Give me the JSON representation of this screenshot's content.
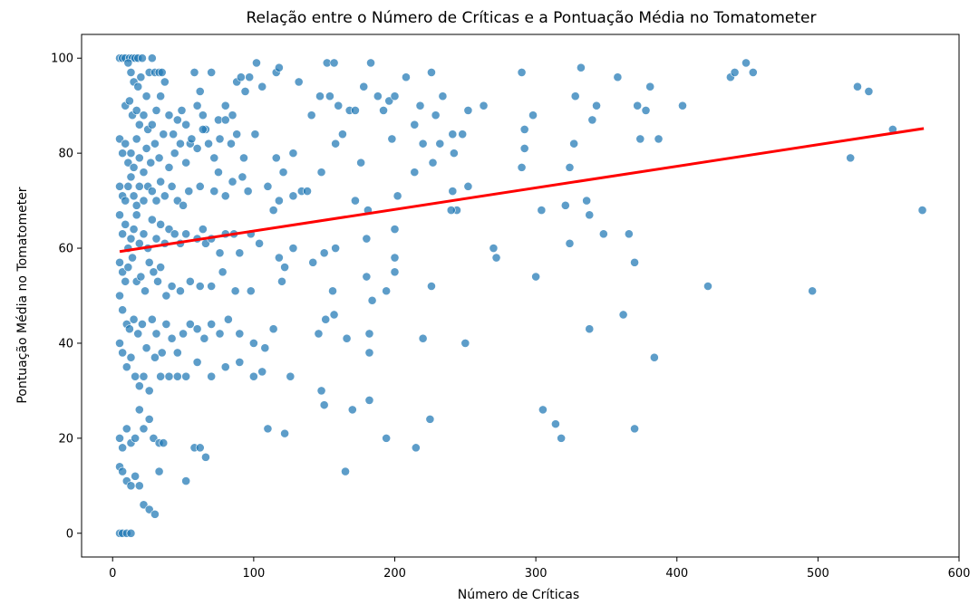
{
  "chart_data": {
    "type": "scatter",
    "title": "Relação entre o Número de Críticas e a Pontuação Média no Tomatometer",
    "xlabel": "Número de Críticas",
    "ylabel": "Pontuação Média no Tomatometer",
    "xlim": [
      -22,
      600
    ],
    "ylim": [
      -5,
      105
    ],
    "xticks": [
      0,
      100,
      200,
      300,
      400,
      500,
      600
    ],
    "yticks": [
      0,
      20,
      40,
      60,
      80,
      100
    ],
    "grid": false,
    "colors": {
      "points": "#1f77b4",
      "trend": "#ff0000"
    },
    "trend_line": {
      "x": [
        5,
        575
      ],
      "y": [
        59.3,
        85.2
      ]
    },
    "points": [
      [
        5,
        100
      ],
      [
        7,
        100
      ],
      [
        9,
        100
      ],
      [
        12,
        100
      ],
      [
        14,
        100
      ],
      [
        16,
        100
      ],
      [
        18,
        100
      ],
      [
        21,
        100
      ],
      [
        28,
        100
      ],
      [
        11,
        99
      ],
      [
        13,
        97
      ],
      [
        15,
        95
      ],
      [
        18,
        94
      ],
      [
        20,
        96
      ],
      [
        24,
        92
      ],
      [
        26,
        97
      ],
      [
        30,
        97
      ],
      [
        33,
        97
      ],
      [
        35,
        97
      ],
      [
        9,
        90
      ],
      [
        12,
        91
      ],
      [
        14,
        88
      ],
      [
        17,
        89
      ],
      [
        19,
        86
      ],
      [
        22,
        88
      ],
      [
        25,
        85
      ],
      [
        28,
        86
      ],
      [
        31,
        89
      ],
      [
        34,
        92
      ],
      [
        37,
        95
      ],
      [
        40,
        88
      ],
      [
        43,
        84
      ],
      [
        46,
        87
      ],
      [
        49,
        89
      ],
      [
        52,
        86
      ],
      [
        55,
        82
      ],
      [
        58,
        97
      ],
      [
        60,
        90
      ],
      [
        62,
        93
      ],
      [
        64,
        88
      ],
      [
        66,
        85
      ],
      [
        70,
        97
      ],
      [
        75,
        87
      ],
      [
        80,
        90
      ],
      [
        85,
        88
      ],
      [
        88,
        95
      ],
      [
        91,
        96
      ],
      [
        94,
        93
      ],
      [
        97,
        96
      ],
      [
        102,
        99
      ],
      [
        106,
        94
      ],
      [
        116,
        97
      ],
      [
        118,
        98
      ],
      [
        132,
        95
      ],
      [
        141,
        88
      ],
      [
        147,
        92
      ],
      [
        152,
        99
      ],
      [
        154,
        92
      ],
      [
        157,
        99
      ],
      [
        160,
        90
      ],
      [
        163,
        84
      ],
      [
        168,
        89
      ],
      [
        172,
        89
      ],
      [
        178,
        94
      ],
      [
        183,
        99
      ],
      [
        188,
        92
      ],
      [
        192,
        89
      ],
      [
        196,
        91
      ],
      [
        200,
        92
      ],
      [
        208,
        96
      ],
      [
        214,
        86
      ],
      [
        218,
        90
      ],
      [
        226,
        97
      ],
      [
        229,
        88
      ],
      [
        234,
        92
      ],
      [
        241,
        84
      ],
      [
        248,
        84
      ],
      [
        252,
        89
      ],
      [
        263,
        90
      ],
      [
        290,
        97
      ],
      [
        292,
        85
      ],
      [
        298,
        88
      ],
      [
        328,
        92
      ],
      [
        332,
        98
      ],
      [
        340,
        87
      ],
      [
        343,
        90
      ],
      [
        358,
        96
      ],
      [
        372,
        90
      ],
      [
        378,
        89
      ],
      [
        381,
        94
      ],
      [
        404,
        90
      ],
      [
        438,
        96
      ],
      [
        441,
        97
      ],
      [
        449,
        99
      ],
      [
        454,
        97
      ],
      [
        528,
        94
      ],
      [
        536,
        93
      ],
      [
        553,
        85
      ],
      [
        5,
        83
      ],
      [
        7,
        80
      ],
      [
        9,
        82
      ],
      [
        11,
        78
      ],
      [
        13,
        80
      ],
      [
        15,
        77
      ],
      [
        17,
        83
      ],
      [
        19,
        79
      ],
      [
        22,
        76
      ],
      [
        24,
        81
      ],
      [
        27,
        78
      ],
      [
        30,
        82
      ],
      [
        33,
        79
      ],
      [
        36,
        84
      ],
      [
        40,
        77
      ],
      [
        44,
        80
      ],
      [
        48,
        82
      ],
      [
        52,
        78
      ],
      [
        56,
        83
      ],
      [
        60,
        81
      ],
      [
        64,
        85
      ],
      [
        68,
        82
      ],
      [
        72,
        79
      ],
      [
        76,
        83
      ],
      [
        80,
        87
      ],
      [
        84,
        82
      ],
      [
        88,
        84
      ],
      [
        93,
        79
      ],
      [
        101,
        84
      ],
      [
        116,
        79
      ],
      [
        121,
        76
      ],
      [
        128,
        80
      ],
      [
        148,
        76
      ],
      [
        158,
        82
      ],
      [
        176,
        78
      ],
      [
        198,
        83
      ],
      [
        214,
        76
      ],
      [
        220,
        82
      ],
      [
        227,
        78
      ],
      [
        232,
        82
      ],
      [
        242,
        80
      ],
      [
        290,
        77
      ],
      [
        292,
        81
      ],
      [
        327,
        82
      ],
      [
        324,
        77
      ],
      [
        374,
        83
      ],
      [
        387,
        83
      ],
      [
        523,
        79
      ],
      [
        5,
        73
      ],
      [
        7,
        71
      ],
      [
        9,
        70
      ],
      [
        11,
        73
      ],
      [
        13,
        75
      ],
      [
        15,
        71
      ],
      [
        17,
        69
      ],
      [
        19,
        73
      ],
      [
        22,
        70
      ],
      [
        25,
        73
      ],
      [
        28,
        72
      ],
      [
        31,
        70
      ],
      [
        34,
        74
      ],
      [
        37,
        71
      ],
      [
        42,
        73
      ],
      [
        46,
        70
      ],
      [
        50,
        69
      ],
      [
        54,
        72
      ],
      [
        62,
        73
      ],
      [
        72,
        72
      ],
      [
        75,
        76
      ],
      [
        80,
        71
      ],
      [
        85,
        74
      ],
      [
        92,
        75
      ],
      [
        96,
        72
      ],
      [
        110,
        73
      ],
      [
        114,
        68
      ],
      [
        118,
        70
      ],
      [
        128,
        71
      ],
      [
        134,
        72
      ],
      [
        138,
        72
      ],
      [
        172,
        70
      ],
      [
        181,
        68
      ],
      [
        202,
        71
      ],
      [
        241,
        72
      ],
      [
        244,
        68
      ],
      [
        252,
        73
      ],
      [
        304,
        68
      ],
      [
        321,
        69
      ],
      [
        336,
        70
      ],
      [
        348,
        63
      ],
      [
        5,
        67
      ],
      [
        7,
        63
      ],
      [
        9,
        65
      ],
      [
        11,
        60
      ],
      [
        13,
        62
      ],
      [
        15,
        64
      ],
      [
        17,
        67
      ],
      [
        19,
        61
      ],
      [
        22,
        63
      ],
      [
        25,
        60
      ],
      [
        28,
        66
      ],
      [
        31,
        62
      ],
      [
        34,
        65
      ],
      [
        37,
        61
      ],
      [
        40,
        64
      ],
      [
        44,
        63
      ],
      [
        48,
        61
      ],
      [
        52,
        63
      ],
      [
        60,
        62
      ],
      [
        64,
        64
      ],
      [
        66,
        61
      ],
      [
        70,
        62
      ],
      [
        76,
        59
      ],
      [
        80,
        63
      ],
      [
        86,
        63
      ],
      [
        90,
        59
      ],
      [
        98,
        63
      ],
      [
        104,
        61
      ],
      [
        118,
        58
      ],
      [
        122,
        56
      ],
      [
        128,
        60
      ],
      [
        142,
        57
      ],
      [
        150,
        59
      ],
      [
        158,
        60
      ],
      [
        180,
        62
      ],
      [
        200,
        64
      ],
      [
        200,
        58
      ],
      [
        240,
        68
      ],
      [
        270,
        60
      ],
      [
        272,
        58
      ],
      [
        300,
        54
      ],
      [
        324,
        61
      ],
      [
        338,
        67
      ],
      [
        366,
        63
      ],
      [
        370,
        57
      ],
      [
        574,
        68
      ],
      [
        5,
        57
      ],
      [
        7,
        55
      ],
      [
        9,
        53
      ],
      [
        11,
        56
      ],
      [
        14,
        58
      ],
      [
        17,
        53
      ],
      [
        20,
        54
      ],
      [
        23,
        51
      ],
      [
        26,
        57
      ],
      [
        29,
        55
      ],
      [
        32,
        53
      ],
      [
        34,
        56
      ],
      [
        38,
        50
      ],
      [
        42,
        52
      ],
      [
        48,
        51
      ],
      [
        55,
        53
      ],
      [
        62,
        52
      ],
      [
        70,
        52
      ],
      [
        78,
        55
      ],
      [
        87,
        51
      ],
      [
        98,
        51
      ],
      [
        120,
        53
      ],
      [
        156,
        51
      ],
      [
        180,
        54
      ],
      [
        184,
        49
      ],
      [
        194,
        51
      ],
      [
        200,
        55
      ],
      [
        226,
        52
      ],
      [
        422,
        52
      ],
      [
        496,
        51
      ],
      [
        5,
        50
      ],
      [
        7,
        47
      ],
      [
        10,
        44
      ],
      [
        12,
        43
      ],
      [
        15,
        45
      ],
      [
        18,
        42
      ],
      [
        21,
        44
      ],
      [
        24,
        39
      ],
      [
        28,
        45
      ],
      [
        31,
        42
      ],
      [
        35,
        38
      ],
      [
        38,
        44
      ],
      [
        42,
        41
      ],
      [
        46,
        38
      ],
      [
        50,
        42
      ],
      [
        55,
        44
      ],
      [
        60,
        43
      ],
      [
        65,
        41
      ],
      [
        70,
        44
      ],
      [
        76,
        42
      ],
      [
        82,
        45
      ],
      [
        90,
        42
      ],
      [
        100,
        40
      ],
      [
        108,
        39
      ],
      [
        114,
        43
      ],
      [
        146,
        42
      ],
      [
        151,
        45
      ],
      [
        157,
        46
      ],
      [
        166,
        41
      ],
      [
        182,
        38
      ],
      [
        182,
        42
      ],
      [
        250,
        40
      ],
      [
        220,
        41
      ],
      [
        338,
        43
      ],
      [
        362,
        46
      ],
      [
        384,
        37
      ],
      [
        5,
        40
      ],
      [
        7,
        38
      ],
      [
        10,
        35
      ],
      [
        13,
        37
      ],
      [
        16,
        33
      ],
      [
        19,
        31
      ],
      [
        22,
        33
      ],
      [
        26,
        30
      ],
      [
        30,
        37
      ],
      [
        34,
        33
      ],
      [
        40,
        33
      ],
      [
        46,
        33
      ],
      [
        52,
        33
      ],
      [
        60,
        36
      ],
      [
        70,
        33
      ],
      [
        80,
        35
      ],
      [
        90,
        36
      ],
      [
        100,
        33
      ],
      [
        106,
        34
      ],
      [
        126,
        33
      ],
      [
        148,
        30
      ],
      [
        150,
        27
      ],
      [
        170,
        26
      ],
      [
        182,
        28
      ],
      [
        5,
        20
      ],
      [
        7,
        18
      ],
      [
        10,
        22
      ],
      [
        13,
        19
      ],
      [
        16,
        20
      ],
      [
        19,
        26
      ],
      [
        22,
        22
      ],
      [
        26,
        24
      ],
      [
        29,
        20
      ],
      [
        33,
        19
      ],
      [
        36,
        19
      ],
      [
        58,
        18
      ],
      [
        62,
        18
      ],
      [
        110,
        22
      ],
      [
        122,
        21
      ],
      [
        194,
        20
      ],
      [
        215,
        18
      ],
      [
        225,
        24
      ],
      [
        305,
        26
      ],
      [
        314,
        23
      ],
      [
        318,
        20
      ],
      [
        370,
        22
      ],
      [
        5,
        14
      ],
      [
        7,
        13
      ],
      [
        10,
        11
      ],
      [
        13,
        10
      ],
      [
        16,
        12
      ],
      [
        19,
        10
      ],
      [
        22,
        6
      ],
      [
        26,
        5
      ],
      [
        30,
        4
      ],
      [
        33,
        13
      ],
      [
        52,
        11
      ],
      [
        66,
        16
      ],
      [
        165,
        13
      ],
      [
        5,
        0
      ],
      [
        7,
        0
      ],
      [
        10,
        0
      ],
      [
        13,
        0
      ]
    ]
  }
}
